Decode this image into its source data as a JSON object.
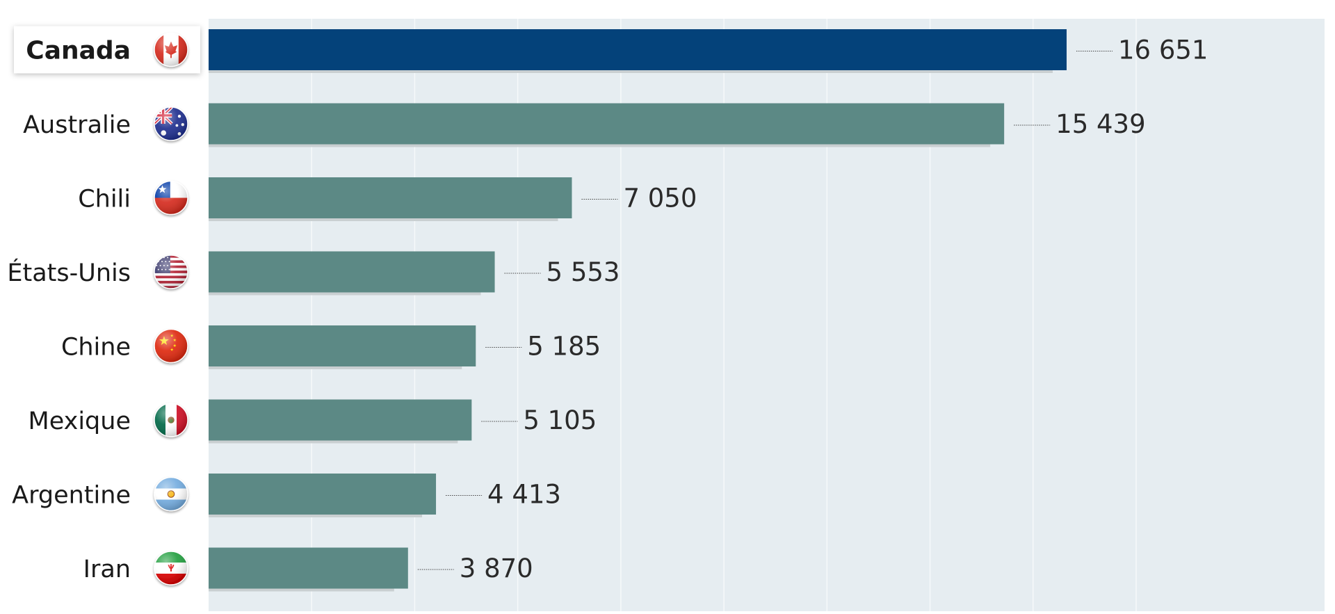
{
  "chart_data": {
    "type": "bar",
    "orientation": "horizontal",
    "title": "",
    "xlabel": "",
    "ylabel": "",
    "xlim": [
      0,
      20000
    ],
    "grid": true,
    "legend": "none",
    "highlight_category": "Canada",
    "categories": [
      "Canada",
      "Australie",
      "Chili",
      "États-Unis",
      "Chine",
      "Mexique",
      "Argentine",
      "Iran"
    ],
    "values": [
      16651,
      15439,
      7050,
      5553,
      5185,
      5105,
      4413,
      3870
    ],
    "value_labels": [
      "16 651",
      "15 439",
      "7 050",
      "5 553",
      "5 185",
      "5 105",
      "4 413",
      "3 870"
    ],
    "flags": [
      "canada-flag-icon",
      "australia-flag-icon",
      "chile-flag-icon",
      "usa-flag-icon",
      "china-flag-icon",
      "mexico-flag-icon",
      "argentina-flag-icon",
      "iran-flag-icon"
    ],
    "colors": {
      "highlight_bar": "#04427a",
      "bar": "#5c8985",
      "bar_shadow": "#c9cfd1",
      "plot_background": "#e6edf1",
      "gridline": "#f7fafb",
      "value_text": "#2a2a2a",
      "label_text": "#1a1a1a"
    }
  }
}
